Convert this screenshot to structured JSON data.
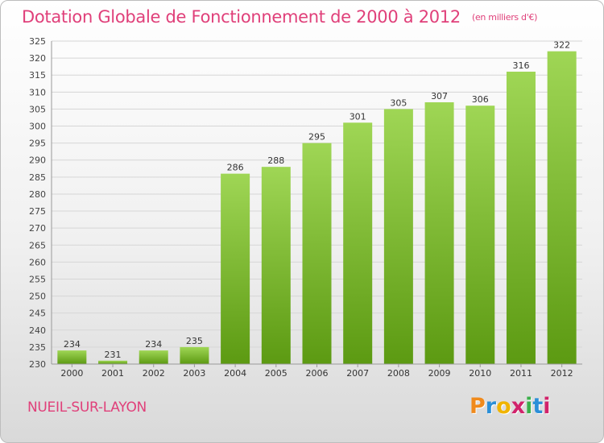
{
  "title": "Dotation Globale de Fonctionnement de 2000 à 2012",
  "unit_note": "(en milliers d'€)",
  "commune": "NUEIL-SUR-LAYON",
  "logo": {
    "text": "Proxiti",
    "colors": [
      "#f08a1c",
      "#2b8fd8",
      "#f0b400",
      "#d1236b",
      "#3bb04a",
      "#2b8fd8",
      "#d1236b"
    ]
  },
  "colors": {
    "bar_top": "#9fd655",
    "bar_bottom": "#5c9a12",
    "title": "#e0407a",
    "grid": "#d6d6d6"
  },
  "chart_data": {
    "type": "bar",
    "categories": [
      "2000",
      "2001",
      "2002",
      "2003",
      "2004",
      "2005",
      "2006",
      "2007",
      "2008",
      "2009",
      "2010",
      "2011",
      "2012"
    ],
    "values": [
      234,
      231,
      234,
      235,
      286,
      288,
      295,
      301,
      305,
      307,
      306,
      316,
      322
    ],
    "ylim": [
      230,
      325
    ],
    "yticks": [
      230,
      235,
      240,
      245,
      250,
      255,
      260,
      265,
      270,
      275,
      280,
      285,
      290,
      295,
      300,
      305,
      310,
      315,
      320,
      325
    ],
    "grid": true,
    "data_labels": true
  }
}
